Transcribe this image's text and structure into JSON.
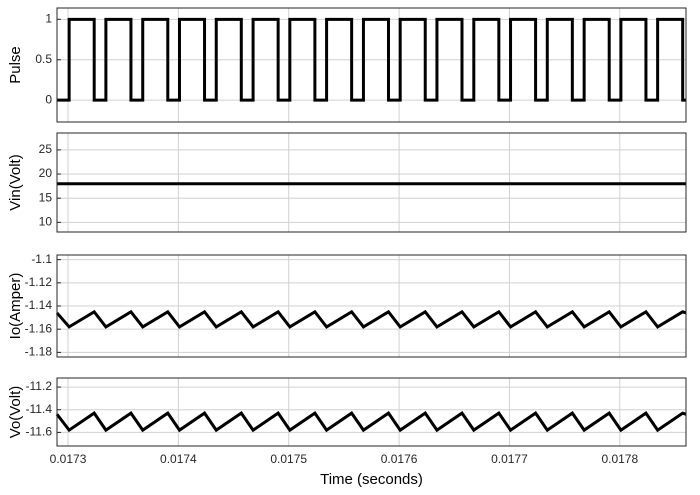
{
  "chart_data": [
    {
      "type": "line",
      "ylabel": "Pulse",
      "x": [
        0.01729,
        0.017301,
        0.017301,
        0.0173237,
        0.0173237,
        0.0173343,
        0.0173343,
        0.017357,
        0.017357,
        0.0173677,
        0.0173677,
        0.0173904,
        0.0173904,
        0.017401,
        0.017401,
        0.0174237,
        0.0174237,
        0.0174343,
        0.0174343,
        0.017457,
        0.017457,
        0.0174677,
        0.0174677,
        0.0174904,
        0.0174904,
        0.017501,
        0.017501,
        0.0175237,
        0.0175237,
        0.0175343,
        0.0175343,
        0.017557,
        0.017557,
        0.0175677,
        0.0175677,
        0.0175904,
        0.0175904,
        0.017601,
        0.017601,
        0.0176237,
        0.0176237,
        0.0176343,
        0.0176343,
        0.017657,
        0.017657,
        0.0176677,
        0.0176677,
        0.0176904,
        0.0176904,
        0.017701,
        0.017701,
        0.0177237,
        0.0177237,
        0.0177343,
        0.0177343,
        0.017757,
        0.017757,
        0.0177677,
        0.0177677,
        0.0177904,
        0.0177904,
        0.017801,
        0.017801,
        0.0178237,
        0.0178237,
        0.0178343,
        0.0178343,
        0.017857,
        0.017857,
        0.01786
      ],
      "series": [
        {
          "color": "#000000",
          "values": [
            0,
            0,
            1,
            1,
            0,
            0,
            1,
            1,
            0,
            0,
            1,
            1,
            0,
            0,
            1,
            1,
            0,
            0,
            1,
            1,
            0,
            0,
            1,
            1,
            0,
            0,
            1,
            1,
            0,
            0,
            1,
            1,
            0,
            0,
            1,
            1,
            0,
            0,
            1,
            1,
            0,
            0,
            1,
            1,
            0,
            0,
            1,
            1,
            0,
            0,
            1,
            1,
            0,
            0,
            1,
            1,
            0,
            0,
            1,
            1,
            0,
            0,
            1,
            1,
            0,
            0,
            1,
            1,
            0,
            0
          ]
        }
      ],
      "xlim": [
        0.01729,
        0.01786
      ],
      "xticks": [
        0.0173,
        0.0174,
        0.0175,
        0.0176,
        0.0177,
        0.0178
      ],
      "ylim": [
        -0.27,
        1.14
      ],
      "yticks": [
        0,
        0.5,
        1
      ],
      "grid": true
    },
    {
      "type": "line",
      "ylabel": "Vin(Volt)",
      "x": [
        0.01729,
        0.01786
      ],
      "series": [
        {
          "color": "#000000",
          "values": [
            18,
            18
          ]
        }
      ],
      "xlim": [
        0.01729,
        0.01786
      ],
      "xticks": [
        0.0173,
        0.0174,
        0.0175,
        0.0176,
        0.0177,
        0.0178
      ],
      "ylim": [
        8,
        28.5
      ],
      "yticks": [
        10,
        15,
        20,
        25
      ],
      "grid": true
    },
    {
      "type": "line",
      "ylabel": "Io(Amper)",
      "x": [
        0.01729,
        0.017301,
        0.0173237,
        0.0173343,
        0.017357,
        0.0173677,
        0.0173904,
        0.017401,
        0.0174237,
        0.0174343,
        0.017457,
        0.0174677,
        0.0174904,
        0.017501,
        0.0175237,
        0.0175343,
        0.017557,
        0.0175677,
        0.0175904,
        0.017601,
        0.0176237,
        0.0176343,
        0.017657,
        0.0176677,
        0.0176904,
        0.017701,
        0.0177237,
        0.0177343,
        0.017757,
        0.0177677,
        0.0177904,
        0.017801,
        0.0178237,
        0.0178343,
        0.017857,
        0.01786
      ],
      "series": [
        {
          "color": "#000000",
          "values": [
            -1.146,
            -1.158,
            -1.145,
            -1.158,
            -1.145,
            -1.158,
            -1.145,
            -1.158,
            -1.145,
            -1.158,
            -1.145,
            -1.158,
            -1.145,
            -1.158,
            -1.145,
            -1.158,
            -1.145,
            -1.158,
            -1.145,
            -1.158,
            -1.145,
            -1.158,
            -1.145,
            -1.158,
            -1.145,
            -1.158,
            -1.145,
            -1.158,
            -1.145,
            -1.158,
            -1.145,
            -1.158,
            -1.145,
            -1.158,
            -1.145,
            -1.146
          ]
        }
      ],
      "xlim": [
        0.01729,
        0.01786
      ],
      "xticks": [
        0.0173,
        0.0174,
        0.0175,
        0.0176,
        0.0177,
        0.0178
      ],
      "ylim": [
        -1.184,
        -1.096
      ],
      "yticks": [
        -1.18,
        -1.16,
        -1.14,
        -1.12,
        -1.1
      ],
      "grid": true
    },
    {
      "type": "line",
      "ylabel": "Vo(Volt)",
      "xlabel": "Time (seconds)",
      "x": [
        0.01729,
        0.017301,
        0.0173237,
        0.0173343,
        0.017357,
        0.0173677,
        0.0173904,
        0.017401,
        0.0174237,
        0.0174343,
        0.017457,
        0.0174677,
        0.0174904,
        0.017501,
        0.0175237,
        0.0175343,
        0.017557,
        0.0175677,
        0.0175904,
        0.017601,
        0.0176237,
        0.0176343,
        0.017657,
        0.0176677,
        0.0176904,
        0.017701,
        0.0177237,
        0.0177343,
        0.017757,
        0.0177677,
        0.0177904,
        0.017801,
        0.0178237,
        0.0178343,
        0.017857,
        0.01786
      ],
      "series": [
        {
          "color": "#000000",
          "values": [
            -11.44,
            -11.58,
            -11.43,
            -11.58,
            -11.43,
            -11.58,
            -11.43,
            -11.58,
            -11.43,
            -11.58,
            -11.43,
            -11.58,
            -11.43,
            -11.58,
            -11.43,
            -11.58,
            -11.43,
            -11.58,
            -11.43,
            -11.58,
            -11.43,
            -11.58,
            -11.43,
            -11.58,
            -11.43,
            -11.58,
            -11.43,
            -11.58,
            -11.43,
            -11.58,
            -11.43,
            -11.58,
            -11.43,
            -11.58,
            -11.43,
            -11.44
          ]
        }
      ],
      "xlim": [
        0.01729,
        0.01786
      ],
      "xticks": [
        0.0173,
        0.0174,
        0.0175,
        0.0176,
        0.0177,
        0.0178
      ],
      "ylim": [
        -11.72,
        -11.12
      ],
      "yticks": [
        -11.6,
        -11.4,
        -11.2
      ],
      "grid": true
    }
  ]
}
